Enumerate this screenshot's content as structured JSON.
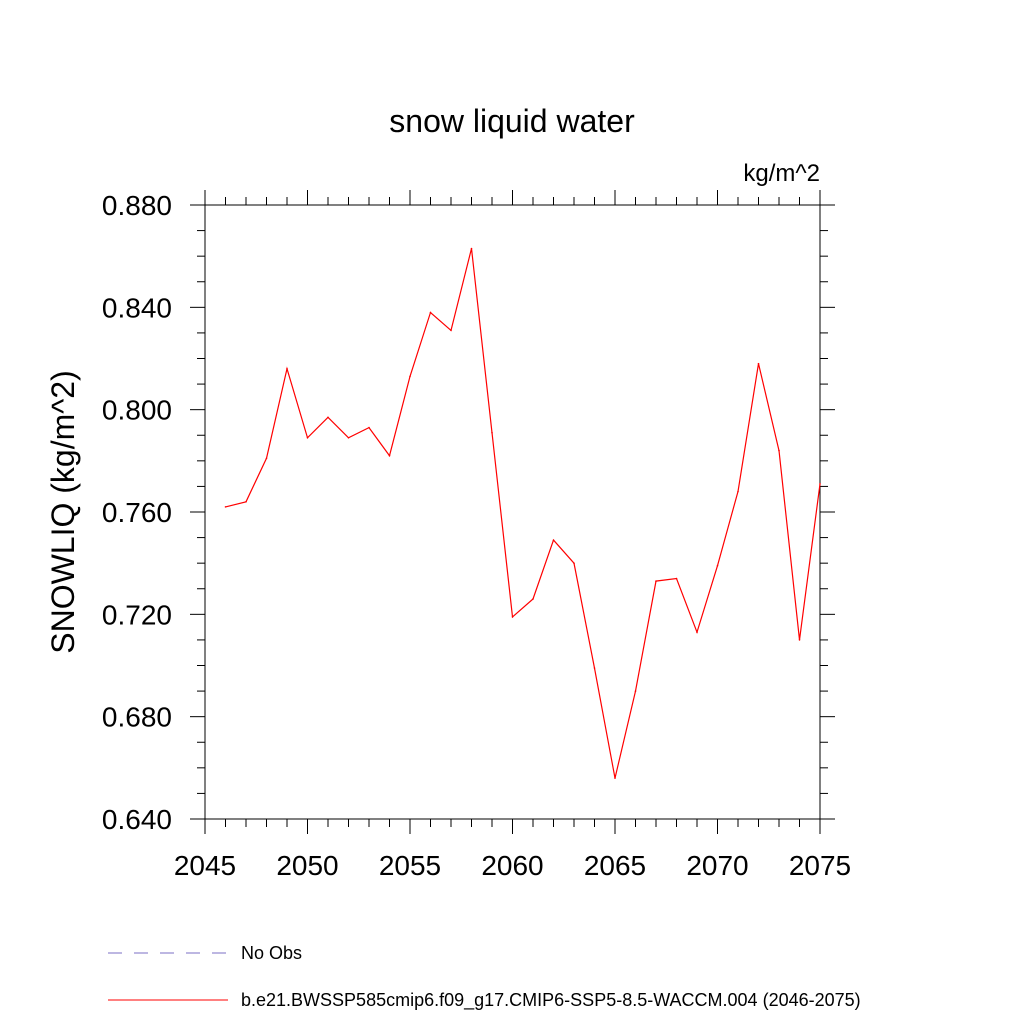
{
  "chart_data": {
    "type": "line",
    "title": "snow liquid water",
    "units": "kg/m^2",
    "ylabel": "SNOWLIQ  (kg/m^2)",
    "xlabel": "",
    "xlim": [
      2045,
      2075
    ],
    "ylim": [
      0.64,
      0.88
    ],
    "xticks": [
      2045,
      2050,
      2055,
      2060,
      2065,
      2070,
      2075
    ],
    "xtick_labels": [
      "2045",
      "2050",
      "2055",
      "2060",
      "2065",
      "2070",
      "2075"
    ],
    "yticks": [
      0.64,
      0.68,
      0.72,
      0.76,
      0.8,
      0.84,
      0.88
    ],
    "ytick_labels": [
      "0.640",
      "0.680",
      "0.720",
      "0.760",
      "0.800",
      "0.840",
      "0.880"
    ],
    "grid": false,
    "legend_position": "bottom",
    "series": [
      {
        "name": "b.e21.BWSSP585cmip6.f09_g17.CMIP6-SSP5-8.5-WACCM.004 (2046-2075)",
        "color": "#ff0000",
        "style": "solid",
        "x": [
          2046,
          2047,
          2048,
          2049,
          2050,
          2051,
          2052,
          2053,
          2054,
          2055,
          2056,
          2057,
          2058,
          2059,
          2060,
          2061,
          2062,
          2063,
          2064,
          2065,
          2066,
          2067,
          2068,
          2069,
          2070,
          2071,
          2072,
          2073,
          2074,
          2075
        ],
        "values": [
          0.762,
          0.764,
          0.781,
          0.816,
          0.789,
          0.797,
          0.789,
          0.793,
          0.782,
          0.813,
          0.838,
          0.831,
          0.863,
          0.791,
          0.719,
          0.726,
          0.749,
          0.74,
          0.699,
          0.656,
          0.69,
          0.733,
          0.734,
          0.713,
          0.739,
          0.768,
          0.818,
          0.784,
          0.71,
          0.771
        ]
      }
    ],
    "legend": [
      {
        "label": "No Obs",
        "color": "#7b6fc4",
        "style": "dashed"
      },
      {
        "label": "b.e21.BWSSP585cmip6.f09_g17.CMIP6-SSP5-8.5-WACCM.004 (2046-2075)",
        "color": "#ff0000",
        "style": "solid"
      }
    ]
  }
}
